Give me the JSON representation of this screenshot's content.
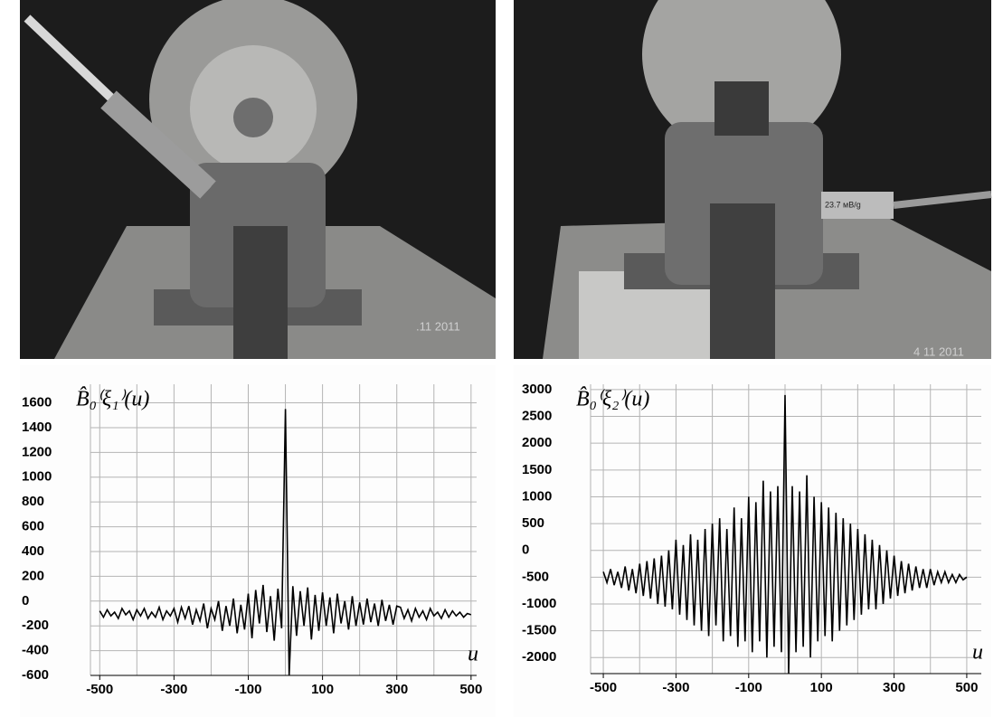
{
  "photos": [
    {
      "stamp": ".11 2011"
    },
    {
      "stamp": "4 11 2011",
      "sensor_label": "23.7 мВ/g"
    }
  ],
  "chart_data": [
    {
      "type": "line",
      "ylabel": "B̂₀⁽ξ₁⁾(u)",
      "xlabel": "u",
      "color": "#000000",
      "grid": true,
      "xlim": [
        -525,
        515
      ],
      "ylim": [
        -600,
        1750
      ],
      "xticks": [
        -500,
        -300,
        -100,
        100,
        300,
        500
      ],
      "xgrid": [
        -500,
        -400,
        -300,
        -200,
        -100,
        0,
        100,
        200,
        300,
        400,
        500
      ],
      "yticks": [
        -600,
        -400,
        -200,
        0,
        200,
        400,
        600,
        800,
        1000,
        1200,
        1400,
        1600
      ],
      "x": [
        -500,
        -490,
        -480,
        -470,
        -460,
        -450,
        -440,
        -430,
        -420,
        -410,
        -400,
        -390,
        -380,
        -370,
        -360,
        -350,
        -340,
        -330,
        -320,
        -310,
        -300,
        -290,
        -280,
        -270,
        -260,
        -250,
        -240,
        -230,
        -220,
        -210,
        -200,
        -190,
        -180,
        -170,
        -160,
        -150,
        -140,
        -130,
        -120,
        -110,
        -100,
        -90,
        -80,
        -70,
        -60,
        -50,
        -40,
        -30,
        -20,
        -10,
        0,
        10,
        20,
        30,
        40,
        50,
        60,
        70,
        80,
        90,
        100,
        110,
        120,
        130,
        140,
        150,
        160,
        170,
        180,
        190,
        200,
        210,
        220,
        230,
        240,
        250,
        260,
        270,
        280,
        290,
        300,
        310,
        320,
        330,
        340,
        350,
        360,
        370,
        380,
        390,
        400,
        410,
        420,
        430,
        440,
        450,
        460,
        470,
        480,
        490,
        500
      ],
      "values": [
        -80,
        -130,
        -70,
        -120,
        -90,
        -140,
        -60,
        -110,
        -80,
        -150,
        -70,
        -120,
        -60,
        -140,
        -90,
        -130,
        -50,
        -150,
        -80,
        -120,
        -60,
        -170,
        -50,
        -140,
        -40,
        -190,
        -70,
        -160,
        -20,
        -220,
        -60,
        -150,
        0,
        -240,
        -40,
        -200,
        20,
        -260,
        -30,
        -230,
        60,
        -300,
        90,
        -180,
        130,
        -250,
        40,
        -320,
        100,
        -220,
        1550,
        -600,
        120,
        -280,
        80,
        -200,
        110,
        -310,
        50,
        -240,
        70,
        -200,
        30,
        -260,
        60,
        -180,
        0,
        -230,
        40,
        -200,
        -10,
        -190,
        20,
        -170,
        -20,
        -200,
        10,
        -160,
        -30,
        -190,
        -40,
        -50,
        -140,
        -70,
        -160,
        -60,
        -130,
        -80,
        -150,
        -60,
        -120,
        -90,
        -140,
        -70,
        -130,
        -80,
        -120,
        -90,
        -130,
        -100,
        -110
      ]
    },
    {
      "type": "line",
      "ylabel": "B̂₀⁽ξ₂⁾(u)",
      "xlabel": "u",
      "color": "#000000",
      "grid": true,
      "xlim": [
        -535,
        540
      ],
      "ylim": [
        -2300,
        3100
      ],
      "xticks": [
        -500,
        -300,
        -100,
        100,
        300,
        500
      ],
      "xgrid": [
        -500,
        -400,
        -300,
        -200,
        -100,
        0,
        100,
        200,
        300,
        400,
        500
      ],
      "yticks": [
        -2000,
        -1500,
        -1000,
        -500,
        0,
        500,
        1000,
        1500,
        2000,
        2500,
        3000
      ],
      "x": [
        -500,
        -490,
        -480,
        -470,
        -460,
        -450,
        -440,
        -430,
        -420,
        -410,
        -400,
        -390,
        -380,
        -370,
        -360,
        -350,
        -340,
        -330,
        -320,
        -310,
        -300,
        -290,
        -280,
        -270,
        -260,
        -250,
        -240,
        -230,
        -220,
        -210,
        -200,
        -190,
        -180,
        -170,
        -160,
        -150,
        -140,
        -130,
        -120,
        -110,
        -100,
        -90,
        -80,
        -70,
        -60,
        -50,
        -40,
        -30,
        -20,
        -10,
        0,
        10,
        20,
        30,
        40,
        50,
        60,
        70,
        80,
        90,
        100,
        110,
        120,
        130,
        140,
        150,
        160,
        170,
        180,
        190,
        200,
        210,
        220,
        230,
        240,
        250,
        260,
        270,
        280,
        290,
        300,
        310,
        320,
        330,
        340,
        350,
        360,
        370,
        380,
        390,
        400,
        410,
        420,
        430,
        440,
        450,
        460,
        470,
        480,
        490,
        500
      ],
      "values": [
        -400,
        -600,
        -350,
        -650,
        -400,
        -700,
        -300,
        -750,
        -350,
        -800,
        -250,
        -850,
        -200,
        -900,
        -150,
        -1000,
        -100,
        -1050,
        0,
        -1100,
        200,
        -1200,
        100,
        -1300,
        300,
        -1400,
        200,
        -1500,
        400,
        -1600,
        500,
        -1400,
        600,
        -1700,
        400,
        -1600,
        800,
        -1800,
        600,
        -1700,
        1000,
        -1900,
        900,
        -1700,
        1300,
        -2000,
        1100,
        -1800,
        1200,
        -1900,
        2900,
        -2300,
        1200,
        -1900,
        1100,
        -1800,
        1400,
        -2000,
        1000,
        -1700,
        900,
        -1600,
        800,
        -1700,
        700,
        -1500,
        600,
        -1400,
        500,
        -1300,
        400,
        -1200,
        300,
        -1100,
        200,
        -1100,
        100,
        -1000,
        0,
        -900,
        -100,
        -850,
        -200,
        -800,
        -250,
        -750,
        -300,
        -700,
        -350,
        -700,
        -350,
        -650,
        -400,
        -600,
        -400,
        -600,
        -450,
        -600,
        -450,
        -550,
        -500
      ]
    }
  ]
}
